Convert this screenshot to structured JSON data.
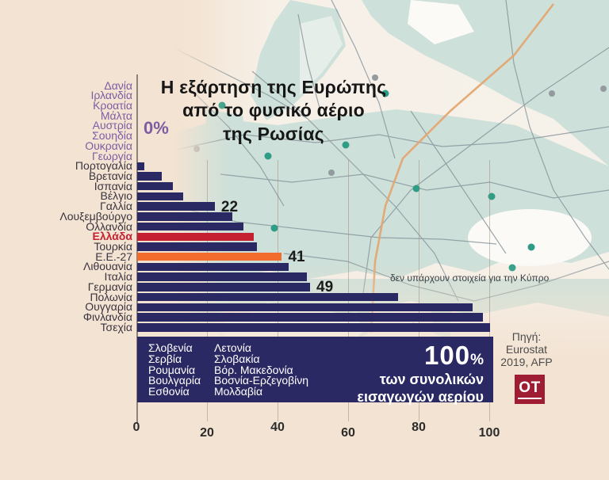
{
  "colors": {
    "background": "#f3e3d2",
    "bar_navy": "#2b2963",
    "bar_red": "#c42032",
    "bar_orange": "#f26c2e",
    "purple": "#7d5ca3",
    "label_dark": "#3a3440",
    "box_navy": "#2b2963",
    "ot_red": "#9e1d33",
    "map_land": "#cde0d9",
    "map_line": "#86939a",
    "map_pipeline_orange": "#e3a771",
    "map_dot_teal": "#2f9c86"
  },
  "title": {
    "line1": "Η εξάρτηση της Ευρώπης",
    "line2": "από το φυσικό αέριο",
    "line3": "της Ρωσίας"
  },
  "zero_group": {
    "label": "0%",
    "countries": [
      "Δανία",
      "Ιρλανδία",
      "Κροατία",
      "Μάλτα",
      "Αυστρία",
      "Σουηδία",
      "Ουκρανία",
      "Γεωργία"
    ]
  },
  "chart_data": {
    "type": "bar",
    "orientation": "horizontal",
    "title": "Η εξάρτηση της Ευρώπης από το φυσικό αέριο της Ρωσίας",
    "xlabel": "% των συνολικών εισαγωγών αερίου",
    "xlim": [
      0,
      100
    ],
    "x_ticks": [
      0,
      20,
      40,
      60,
      80,
      100
    ],
    "grid": "vertical",
    "categories": [
      "Πορτογαλία",
      "Βρετανία",
      "Ισπανία",
      "Βέλγιο",
      "Γαλλία",
      "Λουξεμβούργο",
      "Ολλανδία",
      "Ελλάδα",
      "Τουρκία",
      "Ε.Ε.-27",
      "Λιθουανία",
      "Ιταλία",
      "Γερμανία",
      "Πολωνία",
      "Ουγγαρία",
      "Φινλανδία",
      "Τσεχία"
    ],
    "values": [
      2,
      7,
      10,
      13,
      22,
      27,
      30,
      33,
      34,
      41,
      43,
      48,
      49,
      74,
      95,
      98,
      100
    ],
    "data_labels": {
      "Γαλλία": "22",
      "Ε.Ε.-27": "41",
      "Γερμανία": "49"
    },
    "highlight_colors": {
      "Ελλάδα": "red",
      "Ε.Ε.-27": "orange"
    },
    "emphasis_country": "Ελλάδα",
    "zero_percent_countries": [
      "Δανία",
      "Ιρλανδία",
      "Κροατία",
      "Μάλτα",
      "Αυστρία",
      "Σουηδία",
      "Ουκρανία",
      "Γεωργία"
    ],
    "hundred_percent_countries": [
      "Σλοβενία",
      "Σερβία",
      "Ρουμανία",
      "Βουλγαρία",
      "Εσθονία",
      "Λετονία",
      "Σλοβακία",
      "Βόρ. Μακεδονία",
      "Βοσνία-Ερζεγοβίνη",
      "Μολδαβία"
    ],
    "note": "δεν υπάρχουν στοιχεία για την Κύπρο",
    "source": "Πηγή: Eurostat 2019, AFP"
  },
  "axis": {
    "ticks": [
      "0",
      "20",
      "40",
      "60",
      "80",
      "100"
    ]
  },
  "hundred_box": {
    "col1": [
      "Σλοβενία",
      "Σερβία",
      "Ρουμανία",
      "Βουλγαρία",
      "Εσθονία"
    ],
    "col2": [
      "Λετονία",
      "Σλοβακία",
      "Βόρ. Μακεδονία",
      "Βοσνία-Ερζεγοβίνη",
      "Μολδαβία"
    ],
    "big": "100",
    "pct": "%",
    "sub1": "των συνολικών",
    "sub2": "εισαγωγών αερίου"
  },
  "note": "δεν υπάρχουν στοιχεία για την Κύπρο",
  "source": {
    "line1": "Πηγή:",
    "line2": "Eurostat",
    "line3": "2019, AFP",
    "logo": "OT"
  }
}
